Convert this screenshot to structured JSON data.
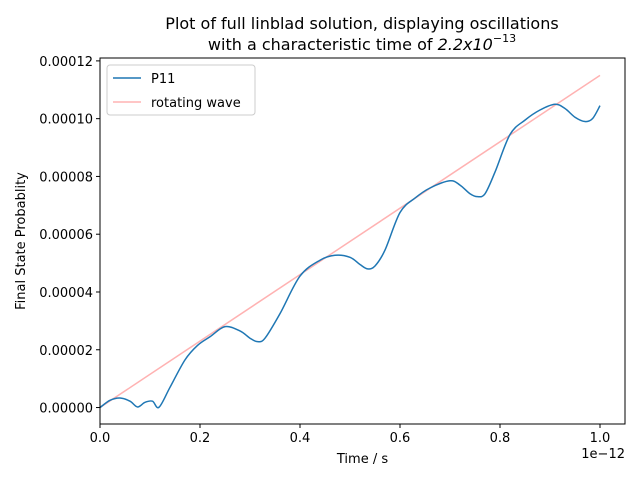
{
  "chart_data": {
    "type": "line",
    "title_line1": "Plot of full linblad solution, displaying oscillations",
    "title_line2_prefix": "with a characteristic time of ",
    "title_line2_math_base": "2.2x10",
    "title_line2_math_exp": "−13",
    "xlabel": "Time / s",
    "ylabel": "Final State Probablity",
    "x_offset_label": "1e−12",
    "xlim": [
      0.0,
      1.05
    ],
    "ylim": [
      -5.7e-06,
      0.000121
    ],
    "x_ticks": [
      0.0,
      0.2,
      0.4,
      0.6,
      0.8,
      1.0
    ],
    "x_tick_labels": [
      "0.0",
      "0.2",
      "0.4",
      "0.6",
      "0.8",
      "1.0"
    ],
    "y_ticks": [
      0.0,
      2e-05,
      4e-05,
      6e-05,
      8e-05,
      0.0001,
      0.00012
    ],
    "y_tick_labels": [
      "0.00000",
      "0.00002",
      "0.00004",
      "0.00006",
      "0.00008",
      "0.00010",
      "0.00012"
    ],
    "legend_position": "top-left",
    "series": [
      {
        "name": "P11",
        "color": "#1f77b4",
        "x": [
          0.0,
          0.02,
          0.04,
          0.06,
          0.075,
          0.09,
          0.105,
          0.118,
          0.14,
          0.17,
          0.195,
          0.22,
          0.25,
          0.28,
          0.3,
          0.315,
          0.33,
          0.36,
          0.4,
          0.44,
          0.47,
          0.5,
          0.52,
          0.535,
          0.55,
          0.57,
          0.6,
          0.63,
          0.66,
          0.7,
          0.72,
          0.74,
          0.755,
          0.77,
          0.79,
          0.82,
          0.85,
          0.88,
          0.91,
          0.93,
          0.95,
          0.97,
          0.985,
          1.0
        ],
        "y": [
          0.0,
          2.5e-06,
          3.3e-06,
          2.2e-06,
          2e-07,
          1.8e-06,
          2.2e-06,
          1e-07,
          7e-06,
          1.65e-05,
          2.15e-05,
          2.45e-05,
          2.8e-05,
          2.65e-05,
          2.4e-05,
          2.28e-05,
          2.4e-05,
          3.25e-05,
          4.55e-05,
          5.1e-05,
          5.27e-05,
          5.2e-05,
          4.95e-05,
          4.8e-05,
          4.9e-05,
          5.45e-05,
          6.75e-05,
          7.25e-05,
          7.6e-05,
          7.85e-05,
          7.7e-05,
          7.4e-05,
          7.3e-05,
          7.4e-05,
          8.15e-05,
          9.45e-05,
          9.95e-05,
          0.000103,
          0.000105,
          0.0001035,
          0.0001005,
          9.9e-05,
          0.0001,
          0.0001045
        ]
      },
      {
        "name": "rotating wave",
        "color": "#ff0000",
        "x": [
          0.0,
          1.0
        ],
        "y": [
          0.0,
          0.000115
        ]
      }
    ]
  }
}
